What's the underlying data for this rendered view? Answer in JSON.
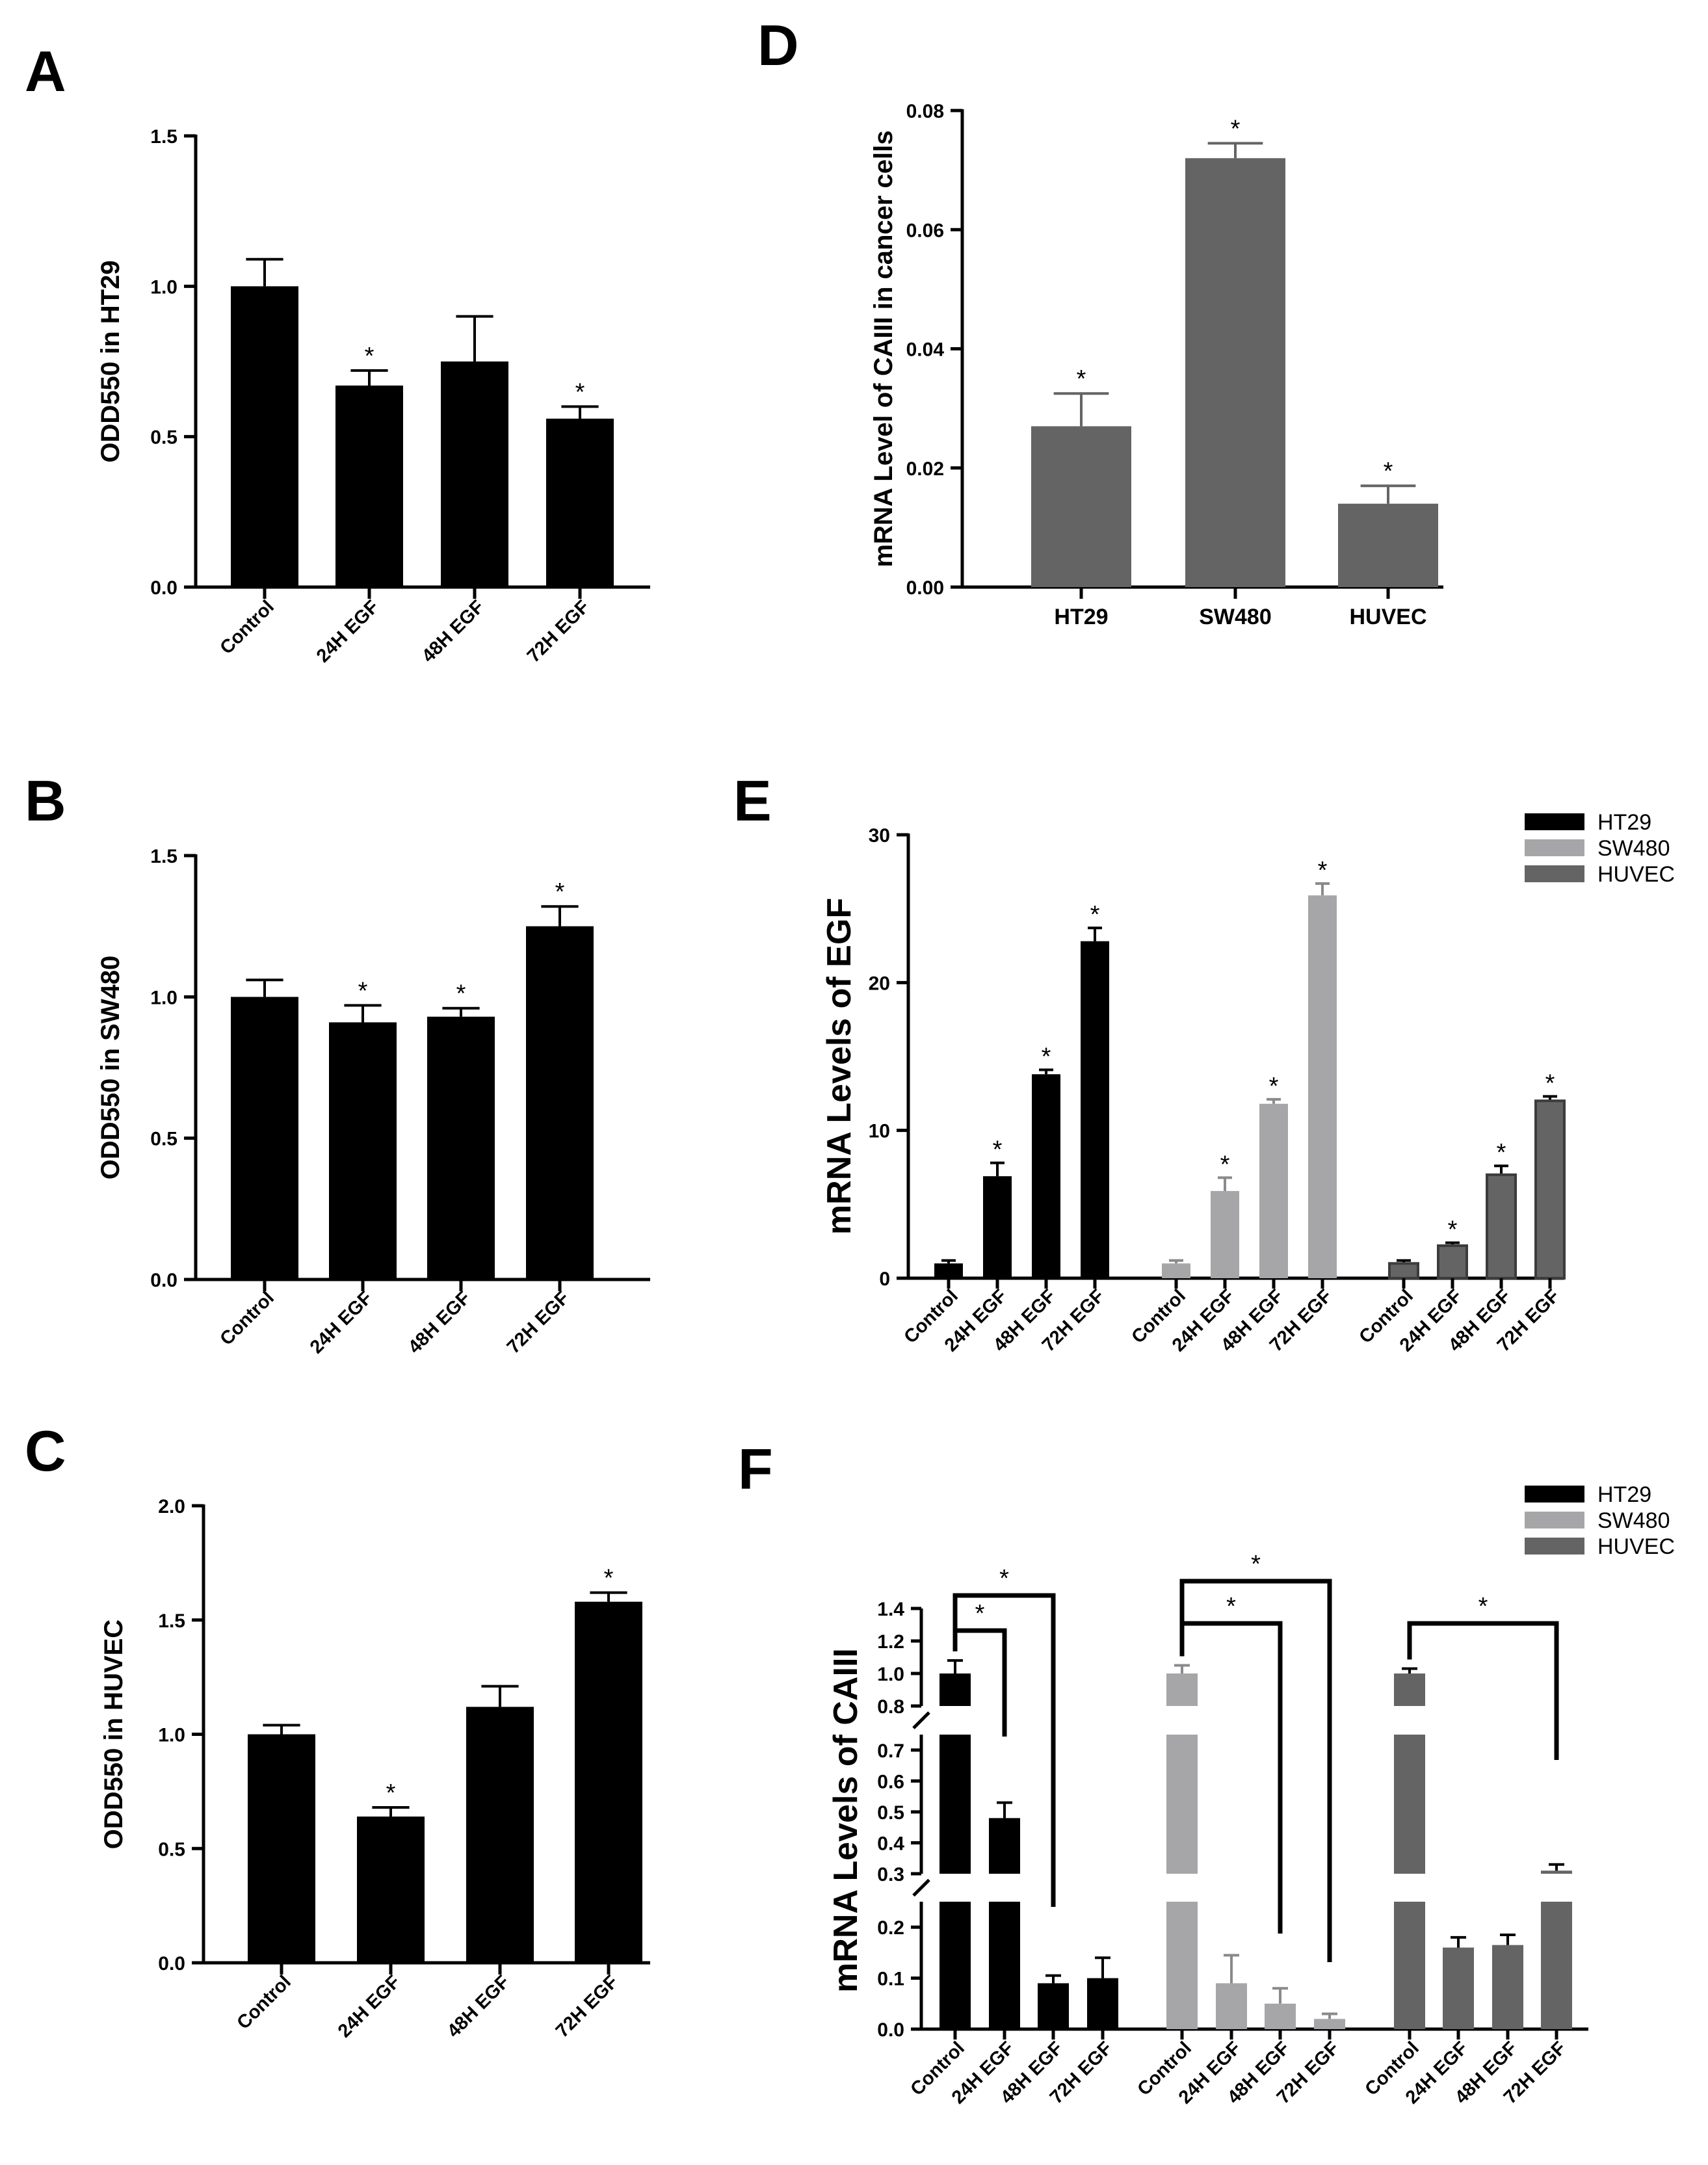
{
  "figure": {
    "colors": {
      "black": "#000000",
      "light_gray": "#a6a6a8",
      "dark_gray": "#646464"
    }
  },
  "chart_data": [
    {
      "id": "A",
      "panel_label": "A",
      "type": "bar",
      "title": "",
      "xlabel": "",
      "ylabel": "ODD550 in HT29",
      "categories": [
        "Control",
        "24H EGF",
        "48H EGF",
        "72H EGF"
      ],
      "values": [
        1.0,
        0.67,
        0.75,
        0.56
      ],
      "errors": [
        0.09,
        0.05,
        0.15,
        0.04
      ],
      "significant": [
        false,
        true,
        false,
        true
      ],
      "ylim": [
        0,
        1.5
      ],
      "yticks": [
        0,
        0.5,
        1.0,
        1.5
      ],
      "ytick_labels": [
        "0.0",
        "0.5",
        "1.0",
        "1.5"
      ],
      "bar_color": "#000000"
    },
    {
      "id": "B",
      "panel_label": "B",
      "type": "bar",
      "title": "",
      "xlabel": "",
      "ylabel": "ODD550 in SW480",
      "categories": [
        "Control",
        "24H EGF",
        "48H EGF",
        "72H EGF"
      ],
      "values": [
        1.0,
        0.91,
        0.93,
        1.25
      ],
      "errors": [
        0.06,
        0.06,
        0.03,
        0.07
      ],
      "significant": [
        false,
        true,
        true,
        true
      ],
      "ylim": [
        0,
        1.5
      ],
      "yticks": [
        0,
        0.5,
        1.0,
        1.5
      ],
      "ytick_labels": [
        "0.0",
        "0.5",
        "1.0",
        "1.5"
      ],
      "bar_color": "#000000"
    },
    {
      "id": "C",
      "panel_label": "C",
      "type": "bar",
      "title": "",
      "xlabel": "",
      "ylabel": "ODD550 in HUVEC",
      "categories": [
        "Control",
        "24H EGF",
        "48H EGF",
        "72H EGF"
      ],
      "values": [
        1.0,
        0.64,
        1.12,
        1.58
      ],
      "errors": [
        0.04,
        0.04,
        0.09,
        0.04
      ],
      "significant": [
        false,
        true,
        false,
        true
      ],
      "ylim": [
        0,
        2.0
      ],
      "yticks": [
        0,
        0.5,
        1.0,
        1.5,
        2.0
      ],
      "ytick_labels": [
        "0.0",
        "0.5",
        "1.0",
        "1.5",
        "2.0"
      ],
      "bar_color": "#000000"
    },
    {
      "id": "D",
      "panel_label": "D",
      "type": "bar",
      "title": "",
      "xlabel": "",
      "ylabel": "mRNA Level of CAIII in cancer cells",
      "categories": [
        "HT29",
        "SW480",
        "HUVEC"
      ],
      "values": [
        0.027,
        0.072,
        0.014
      ],
      "errors": [
        0.0055,
        0.0025,
        0.003
      ],
      "significant": [
        true,
        true,
        true
      ],
      "ylim": [
        0,
        0.08
      ],
      "yticks": [
        0,
        0.02,
        0.04,
        0.06,
        0.08
      ],
      "ytick_labels": [
        "0.00",
        "0.02",
        "0.04",
        "0.06",
        "0.08"
      ],
      "bar_color": "#646464"
    },
    {
      "id": "E",
      "panel_label": "E",
      "type": "bar",
      "title": "",
      "xlabel": "",
      "ylabel": "mRNA Levels of EGF",
      "categories": [
        "Control",
        "24H EGF",
        "48H EGF",
        "72H EGF"
      ],
      "series": [
        {
          "name": "HT29",
          "color": "#000000",
          "values": [
            1.0,
            6.9,
            13.8,
            22.8
          ],
          "errors": [
            0.2,
            0.9,
            0.3,
            0.9
          ],
          "significant": [
            false,
            true,
            true,
            true
          ]
        },
        {
          "name": "SW480",
          "color": "#a6a6a8",
          "values": [
            1.0,
            5.9,
            11.8,
            25.9
          ],
          "errors": [
            0.2,
            0.9,
            0.3,
            0.8
          ],
          "significant": [
            false,
            true,
            true,
            true
          ]
        },
        {
          "name": "HUVEC",
          "color": "#646464",
          "values": [
            1.0,
            2.2,
            7.0,
            12.0
          ],
          "errors": [
            0.2,
            0.2,
            0.6,
            0.3
          ],
          "significant": [
            false,
            true,
            true,
            true
          ]
        }
      ],
      "ylim": [
        0,
        30
      ],
      "yticks": [
        0,
        10,
        20,
        30
      ],
      "ytick_labels": [
        "0",
        "10",
        "20",
        "30"
      ],
      "legend": "top-right"
    },
    {
      "id": "F",
      "panel_label": "F",
      "type": "bar",
      "title": "",
      "xlabel": "",
      "ylabel": "mRNA Levels of CAIII",
      "categories": [
        "Control",
        "24H EGF",
        "48H EGF",
        "72H EGF"
      ],
      "series": [
        {
          "name": "HT29",
          "color": "#000000",
          "values": [
            1.0,
            0.48,
            0.09,
            0.1
          ],
          "errors": [
            0.08,
            0.05,
            0.015,
            0.04
          ]
        },
        {
          "name": "SW480",
          "color": "#a6a6a8",
          "values": [
            1.0,
            0.09,
            0.05,
            0.02
          ],
          "errors": [
            0.05,
            0.055,
            0.03,
            0.01
          ]
        },
        {
          "name": "HUVEC",
          "color": "#646464",
          "values": [
            1.0,
            0.16,
            0.165,
            0.31
          ],
          "errors": [
            0.03,
            0.02,
            0.02,
            0.02
          ]
        }
      ],
      "broken_axis": {
        "segments": [
          {
            "range": [
              0,
              0.25
            ],
            "ticks": [
              0,
              0.1,
              0.2
            ],
            "tick_labels": [
              "0.0",
              "0.1",
              "0.2"
            ]
          },
          {
            "range": [
              0.3,
              0.75
            ],
            "ticks": [
              0.3,
              0.4,
              0.5,
              0.6,
              0.7
            ],
            "tick_labels": [
              "0.3",
              "0.4",
              "0.5",
              "0.6",
              "0.7"
            ]
          },
          {
            "range": [
              0.8,
              1.4
            ],
            "ticks": [
              0.8,
              1.0,
              1.2,
              1.4
            ],
            "tick_labels": [
              "0.8",
              "1.0",
              "1.2",
              "1.4"
            ]
          }
        ]
      },
      "comparisons": [
        {
          "series": "HT29",
          "from": "Control",
          "to": "24H EGF",
          "label": "*"
        },
        {
          "series": "HT29",
          "from": "Control",
          "to": "48H EGF",
          "label": "*"
        },
        {
          "series": "SW480",
          "from": "Control",
          "to": "48H EGF",
          "label": "*"
        },
        {
          "series": "SW480",
          "from": "Control",
          "to": "72H EGF",
          "label": "*"
        },
        {
          "series": "HUVEC",
          "from": "Control",
          "to": "72H EGF",
          "label": "*"
        }
      ],
      "legend": "top-right"
    }
  ]
}
